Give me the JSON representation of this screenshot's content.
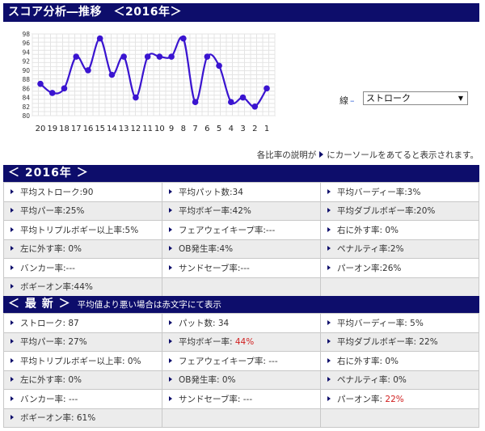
{
  "title": "スコア分析―推移　＜2016年＞",
  "chart_data": {
    "type": "line",
    "x": [
      "20",
      "19",
      "18",
      "17",
      "16",
      "15",
      "14",
      "13",
      "12",
      "11",
      "10",
      "9",
      "8",
      "7",
      "6",
      "5",
      "4",
      "3",
      "2",
      "1"
    ],
    "values": [
      87,
      85,
      86,
      93,
      90,
      97,
      89,
      93,
      84,
      93,
      93,
      93,
      97,
      83,
      93,
      91,
      83,
      84,
      82,
      86
    ],
    "y_ticks": [
      98,
      96,
      94,
      92,
      90,
      88,
      86,
      84,
      82,
      80
    ],
    "ylim": [
      80,
      98
    ],
    "grid": true,
    "line_color": "#3a14d0",
    "marker_color": "#3a14d0"
  },
  "line_select": {
    "label": "線",
    "value": "ストローク"
  },
  "note": {
    "before": "各比率の説明が",
    "after": "にカーソールをあてると表示されます。"
  },
  "section_2016": {
    "title": "＜ 2016年 ＞",
    "rows": [
      [
        "平均ストローク:90",
        "平均パット数:34",
        "平均バーディー率:3%"
      ],
      [
        "平均パー率:25%",
        "平均ボギー率:42%",
        "平均ダブルボギー率:20%"
      ],
      [
        "平均トリプルボギー以上率:5%",
        "フェアウェイキープ率:---",
        "右に外す率: 0%"
      ],
      [
        "左に外す率: 0%",
        "OB発生率:4%",
        "ペナルティ率:2%"
      ],
      [
        "バンカー率:---",
        "サンドセーブ率:---",
        "パーオン率:26%"
      ],
      [
        "ボギーオン率:44%",
        "",
        ""
      ]
    ]
  },
  "section_latest": {
    "title": "＜ 最 新 ＞",
    "subtitle": "平均値より悪い場合は赤文字にて表示",
    "rows": [
      [
        {
          "label": "ストローク: 87"
        },
        {
          "label": "パット数: 34"
        },
        {
          "label": "平均バーディー率: 5%"
        }
      ],
      [
        {
          "label": "平均パー率: 27%"
        },
        {
          "label": "平均ボギー率: ",
          "red": "44%"
        },
        {
          "label": "平均ダブルボギー率: 22%"
        }
      ],
      [
        {
          "label": "平均トリプルボギー以上率: 0%"
        },
        {
          "label": "フェアウェイキープ率: ---"
        },
        {
          "label": "右に外す率: 0%"
        }
      ],
      [
        {
          "label": "左に外す率: 0%"
        },
        {
          "label": "OB発生率: 0%"
        },
        {
          "label": "ペナルティ率: 0%"
        }
      ],
      [
        {
          "label": "バンカー率: ---"
        },
        {
          "label": "サンドセーブ率: ---"
        },
        {
          "label": "パーオン率: ",
          "red": "22%"
        }
      ],
      [
        {
          "label": "ボギーオン率: 61%"
        },
        {
          "label": ""
        },
        {
          "label": ""
        }
      ]
    ]
  }
}
